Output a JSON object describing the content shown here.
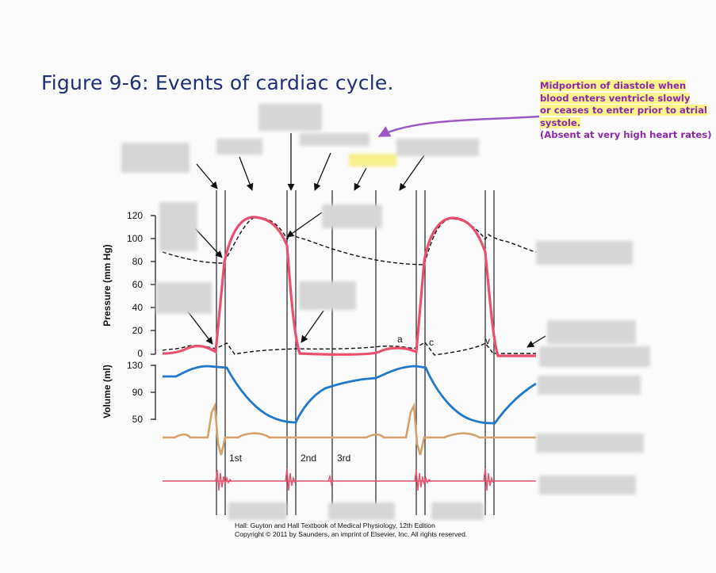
{
  "title": "Figure 9-6: Events of cardiac cycle.",
  "note": {
    "line1": "Midportion of diastole when",
    "line2": "blood enters ventricle slowly",
    "line3": "or ceases to enter prior to atrial",
    "line4": "systole.",
    "line5": "(Absent at very high heart rates)"
  },
  "axes": {
    "pressure_label": "Pressure (mm Hg)",
    "volume_label": "Volume (ml)",
    "pressure_ticks": [
      "120",
      "100",
      "80",
      "60",
      "40",
      "20",
      "0"
    ],
    "volume_ticks": [
      "130",
      "90",
      "50"
    ]
  },
  "sounds": {
    "first": "1st",
    "second": "2nd",
    "third": "3rd"
  },
  "waves": {
    "a": "a",
    "c": "c",
    "v": "v"
  },
  "credit": {
    "line1": "Hall: Guyton and Hall Textbook of Medical Physiology, 12th Edition",
    "line2": "Copyright © 2011 by Saunders, an imprint of Elsevier, Inc. All rights reserved."
  },
  "colors": {
    "title": "#1f2f74",
    "note_text": "#8a2aa8",
    "highlight": "#fbf48a",
    "arrow_purple": "#9b59c4",
    "ventricular_pressure": "#e8506e",
    "volume": "#1f78c8",
    "ecg": "#d2a26a",
    "phonocardiogram": "#e8506e"
  }
}
